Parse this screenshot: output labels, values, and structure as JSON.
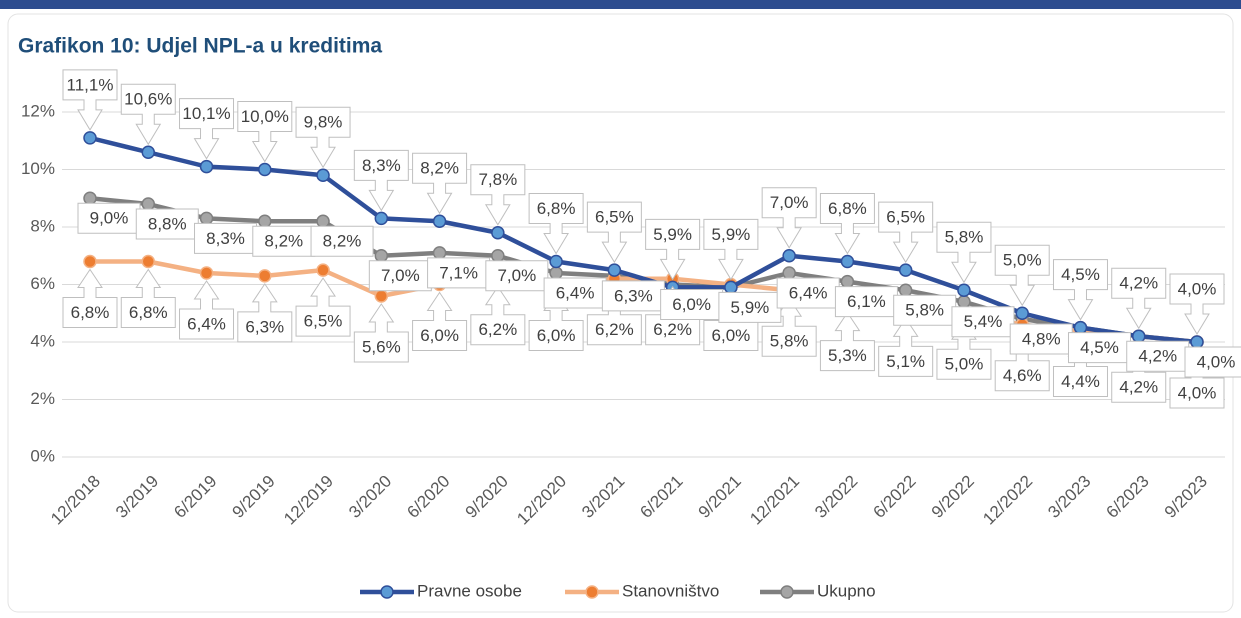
{
  "chart_data": {
    "type": "line",
    "title": "Grafikon 10: Udjel NPL-a u kreditima",
    "categories": [
      "12/2018",
      "3/2019",
      "6/2019",
      "9/2019",
      "12/2019",
      "3/2020",
      "6/2020",
      "9/2020",
      "12/2020",
      "3/2021",
      "6/2021",
      "9/2021",
      "12/2021",
      "3/2022",
      "6/2022",
      "9/2022",
      "12/2022",
      "3/2023",
      "6/2023",
      "9/2023"
    ],
    "series": [
      {
        "name": "Pravne osobe",
        "color": "#2f4f9a",
        "marker_color": "#5b9bd5",
        "values": [
          11.1,
          10.6,
          10.1,
          10.0,
          9.8,
          8.3,
          8.2,
          7.8,
          6.8,
          6.5,
          5.9,
          5.9,
          7.0,
          6.8,
          6.5,
          5.8,
          5.0,
          4.5,
          4.2,
          4.0
        ],
        "value_labels": [
          "11,1%",
          "10,6%",
          "10,1%",
          "10,0%",
          "9,8%",
          "8,3%",
          "8,2%",
          "7,8%",
          "6,8%",
          "6,5%",
          "5,9%",
          "5,9%",
          "7,0%",
          "6,8%",
          "6,5%",
          "5,8%",
          "5,0%",
          "4,5%",
          "4,2%",
          "4,0%"
        ]
      },
      {
        "name": "Stanovništvo",
        "color": "#f4b183",
        "marker_color": "#ed7d31",
        "values": [
          6.8,
          6.8,
          6.4,
          6.3,
          6.5,
          5.6,
          6.0,
          6.2,
          6.0,
          6.2,
          6.2,
          6.0,
          5.8,
          5.3,
          5.1,
          5.0,
          4.6,
          4.4,
          4.2,
          4.0
        ],
        "value_labels": [
          "6,8%",
          "6,8%",
          "6,4%",
          "6,3%",
          "6,5%",
          "5,6%",
          "6,0%",
          "6,2%",
          "6,0%",
          "6,2%",
          "6,2%",
          "6,0%",
          "5,8%",
          "5,3%",
          "5,1%",
          "5,0%",
          "4,6%",
          "4,4%",
          "4,2%",
          "4,0%"
        ]
      },
      {
        "name": "Ukupno",
        "color": "#7f7f7f",
        "marker_color": "#a5a5a5",
        "values": [
          9.0,
          8.8,
          8.3,
          8.2,
          8.2,
          7.0,
          7.1,
          7.0,
          6.4,
          6.3,
          6.0,
          5.9,
          6.4,
          6.1,
          5.8,
          5.4,
          4.8,
          4.5,
          4.2,
          4.0
        ],
        "value_labels": [
          "9,0%",
          "8,8%",
          "8,3%",
          "8,2%",
          "8,2%",
          "7,0%",
          "7,1%",
          "7,0%",
          "6,4%",
          "6,3%",
          "6,0%",
          "5,9%",
          "6,4%",
          "6,1%",
          "5,8%",
          "5,4%",
          "4,8%",
          "4,5%",
          "4,2%",
          "4,0%"
        ]
      }
    ],
    "ylim": [
      0,
      12
    ],
    "yticks": [
      {
        "value": 0,
        "label": "0%"
      },
      {
        "value": 2,
        "label": "2%"
      },
      {
        "value": 4,
        "label": "4%"
      },
      {
        "value": 6,
        "label": "6%"
      },
      {
        "value": 8,
        "label": "8%"
      },
      {
        "value": 10,
        "label": "10%"
      },
      {
        "value": 12,
        "label": "12%"
      }
    ],
    "grid": true,
    "legend": "bottom"
  }
}
